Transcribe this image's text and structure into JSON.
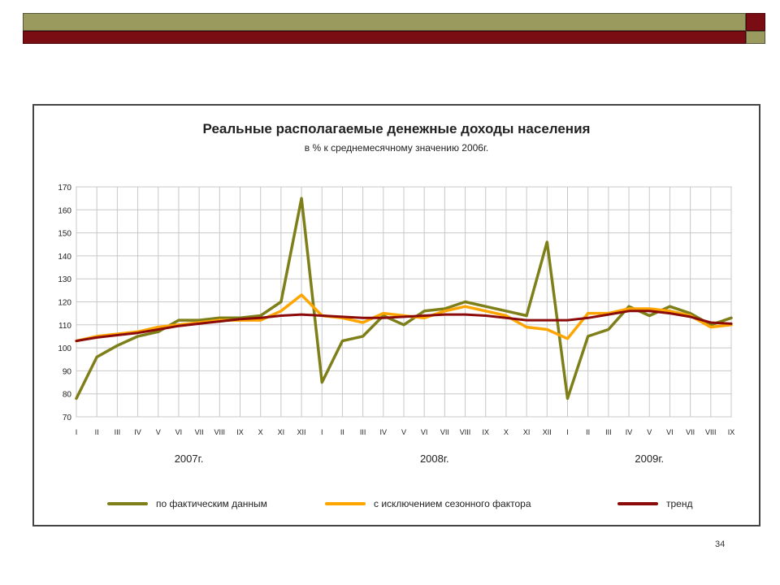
{
  "slide": {
    "page_number": "34",
    "colors": {
      "olive_bar": "#9a9a5e",
      "maroon_bar": "#7a0c14"
    }
  },
  "chart_data": {
    "type": "line",
    "title": "Реальные располагаемые денежные доходы населения",
    "subtitle": "в % к среднемесячному значению 2006г.",
    "ylim": [
      70,
      170
    ],
    "yticks": [
      70,
      80,
      90,
      100,
      110,
      120,
      130,
      140,
      150,
      160,
      170
    ],
    "grid": true,
    "legend_position": "bottom",
    "categories": [
      "I",
      "II",
      "III",
      "IV",
      "V",
      "VI",
      "VII",
      "VIII",
      "IX",
      "X",
      "XI",
      "XII",
      "I",
      "II",
      "III",
      "IV",
      "V",
      "VI",
      "VII",
      "VIII",
      "IX",
      "X",
      "XI",
      "XII",
      "I",
      "II",
      "III",
      "IV",
      "V",
      "VI",
      "VII",
      "VIII",
      "IX"
    ],
    "year_labels": [
      {
        "label": "2007г.",
        "center_index": 5.5
      },
      {
        "label": "2008г.",
        "center_index": 17.5
      },
      {
        "label": "2009г.",
        "center_index": 28
      }
    ],
    "series": [
      {
        "name": "по фактическим данным",
        "color": "#7f7f1a",
        "values": [
          78,
          96,
          101,
          105,
          107,
          112,
          112,
          113,
          113,
          114,
          120,
          165,
          85,
          103,
          105,
          114,
          110,
          116,
          117,
          120,
          118,
          116,
          114,
          146,
          78,
          105,
          108,
          118,
          114,
          118,
          115,
          110,
          113
        ]
      },
      {
        "name": "с исключением сезонного фактора",
        "color": "#ffa500",
        "values": [
          103,
          105,
          106,
          107,
          109,
          110,
          111,
          112,
          112,
          112,
          116,
          123,
          114,
          113,
          111,
          115,
          114,
          113,
          116,
          118,
          116,
          114,
          109,
          108,
          104,
          115,
          115,
          117,
          117,
          116,
          114,
          109,
          110
        ]
      },
      {
        "name": "тренд",
        "color": "#8b0a0a",
        "values": [
          103,
          104.5,
          105.5,
          106.5,
          108,
          109.5,
          110.5,
          111.5,
          112.5,
          113,
          114,
          114.5,
          114,
          113.5,
          113,
          113,
          113.5,
          114,
          114.5,
          114.5,
          114,
          113,
          112,
          112,
          112,
          113,
          114.5,
          116,
          116,
          115,
          113.5,
          111,
          110.5
        ]
      }
    ]
  }
}
